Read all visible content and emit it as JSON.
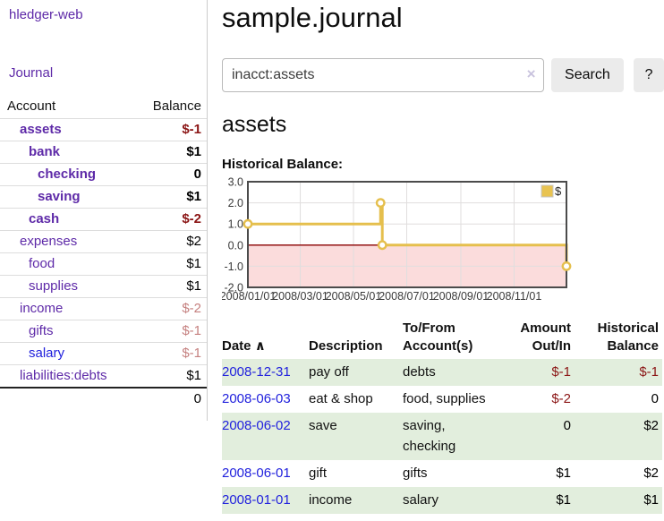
{
  "app": {
    "name": "hledger-web"
  },
  "sidebar": {
    "nav": [
      {
        "label": "Journal"
      }
    ],
    "accounts_table": {
      "headers": [
        "Account",
        "Balance"
      ],
      "rows": [
        {
          "account": "assets",
          "indent": 1,
          "bold": true,
          "balance": "$-1",
          "balance_class": "neg",
          "color": "purple"
        },
        {
          "account": "bank",
          "indent": 2,
          "bold": true,
          "balance": "$1",
          "balance_class": "",
          "color": "purple"
        },
        {
          "account": "checking",
          "indent": 3,
          "bold": true,
          "balance": "0",
          "balance_class": "",
          "color": "purple"
        },
        {
          "account": "saving",
          "indent": 3,
          "bold": true,
          "balance": "$1",
          "balance_class": "",
          "color": "purple"
        },
        {
          "account": "cash",
          "indent": 2,
          "bold": true,
          "balance": "$-2",
          "balance_class": "neg",
          "color": "purple"
        },
        {
          "account": "expenses",
          "indent": 1,
          "bold": false,
          "balance": "$2",
          "balance_class": "",
          "color": "purple"
        },
        {
          "account": "food",
          "indent": 2,
          "bold": false,
          "balance": "$1",
          "balance_class": "",
          "color": "purple"
        },
        {
          "account": "supplies",
          "indent": 2,
          "bold": false,
          "balance": "$1",
          "balance_class": "",
          "color": "purple"
        },
        {
          "account": "income",
          "indent": 1,
          "bold": false,
          "balance": "$-2",
          "balance_class": "negdim",
          "color": "purple"
        },
        {
          "account": "gifts",
          "indent": 2,
          "bold": false,
          "balance": "$-1",
          "balance_class": "negdim",
          "color": "purple"
        },
        {
          "account": "salary",
          "indent": 2,
          "bold": false,
          "balance": "$-1",
          "balance_class": "negdim",
          "color": "blue"
        },
        {
          "account": "liabilities:debts",
          "indent": 1,
          "bold": false,
          "balance": "$1",
          "balance_class": "",
          "color": "purple"
        }
      ],
      "total": "0"
    }
  },
  "header": {
    "title": "sample.journal"
  },
  "search": {
    "value": "inacct:assets",
    "clear_icon": "×",
    "button_label": "Search",
    "help_label": "?"
  },
  "account_page": {
    "heading": "assets",
    "chart_label": "Historical Balance:"
  },
  "chart_data": {
    "type": "line",
    "step": true,
    "title": "Historical Balance:",
    "legend": [
      {
        "label": "$",
        "color": "#e8c351"
      }
    ],
    "legend_position": "top-right",
    "grid": true,
    "xlim": [
      "2008-01-01",
      "2008-12-31"
    ],
    "ylim": [
      -2,
      3
    ],
    "yticks": [
      {
        "v": 3,
        "label": "3.0"
      },
      {
        "v": 2,
        "label": "2.0"
      },
      {
        "v": 1,
        "label": "1.0"
      },
      {
        "v": 0,
        "label": "0.0"
      },
      {
        "v": -1,
        "label": "-1.0"
      },
      {
        "v": -2,
        "label": "-2.0"
      }
    ],
    "xticks": [
      {
        "date": "2008-01-01",
        "label": "2008/01/01"
      },
      {
        "date": "2008-03-01",
        "label": "2008/03/01"
      },
      {
        "date": "2008-05-01",
        "label": "2008/05/01"
      },
      {
        "date": "2008-07-01",
        "label": "2008/07/01"
      },
      {
        "date": "2008-09-01",
        "label": "2008/09/01"
      },
      {
        "date": "2008-11-01",
        "label": "2008/11/01"
      }
    ],
    "series": [
      {
        "name": "$",
        "color": "#e5bf4d",
        "points": [
          [
            "2008-01-01",
            1
          ],
          [
            "2008-06-01",
            2
          ],
          [
            "2008-06-03",
            0
          ],
          [
            "2008-12-31",
            -1
          ]
        ]
      }
    ],
    "negative_region_fill": "#fbdcdc",
    "zero_line_color": "#8b0000"
  },
  "register_table": {
    "headers": {
      "date": "Date",
      "sort_icon": "∧",
      "description": "Description",
      "tofrom_line1": "To/From",
      "tofrom_line2": "Account(s)",
      "amount_line1": "Amount",
      "amount_line2": "Out/In",
      "balance_line1": "Historical",
      "balance_line2": "Balance"
    },
    "rows": [
      {
        "date": "2008-12-31",
        "description": "pay off",
        "accounts": [
          "debts"
        ],
        "amount": "$-1",
        "balance": "$-1",
        "shaded": true
      },
      {
        "date": "2008-06-03",
        "description": "eat & shop",
        "accounts": [
          "food",
          "supplies"
        ],
        "amount": "$-2",
        "balance": "0",
        "shaded": false
      },
      {
        "date": "2008-06-02",
        "description": "save",
        "accounts": [
          "saving",
          "checking"
        ],
        "amount": "0",
        "balance": "$2",
        "shaded": true
      },
      {
        "date": "2008-06-01",
        "description": "gift",
        "accounts": [
          "gifts"
        ],
        "amount": "$1",
        "balance": "$2",
        "shaded": false
      },
      {
        "date": "2008-01-01",
        "description": "income",
        "accounts": [
          "salary"
        ],
        "amount": "$1",
        "balance": "$1",
        "shaded": true
      }
    ]
  },
  "colors": {
    "link_purple": "#5e2aa8",
    "link_blue": "#2222dd",
    "negative_strong": "#8b1515",
    "negative_dim": "#c5807f",
    "row_shade_green": "#e2eedd",
    "chart_line_gold": "#e5bf4d",
    "chart_negative_fill": "#fbdcdc",
    "chart_zero_line": "#8b0000"
  }
}
